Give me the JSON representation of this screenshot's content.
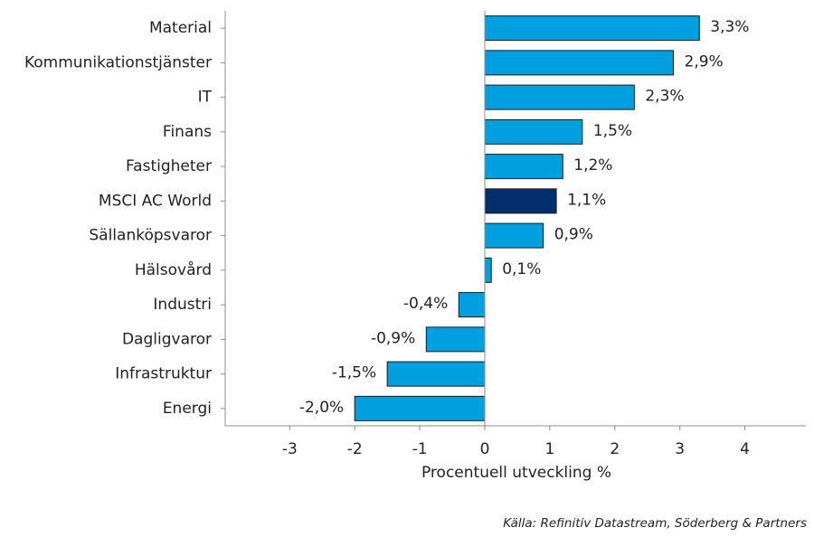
{
  "chart_data": {
    "type": "bar",
    "orientation": "horizontal",
    "categories": [
      "Material",
      "Kommunikationstjänster",
      "IT",
      "Finans",
      "Fastigheter",
      "MSCI AC World",
      "Sällanköpsvaror",
      "Hälsovård",
      "Industri",
      "Dagligvaror",
      "Infrastruktur",
      "Energi"
    ],
    "values": [
      3.3,
      2.9,
      2.3,
      1.5,
      1.2,
      1.1,
      0.9,
      0.1,
      -0.4,
      -0.9,
      -1.5,
      -2.0
    ],
    "value_labels": [
      "3,3%",
      "2,9%",
      "2,3%",
      "1,5%",
      "1,2%",
      "1,1%",
      "0,9%",
      "0,1%",
      "-0,4%",
      "-0,9%",
      "-1,5%",
      "-2,0%"
    ],
    "highlight_category": "MSCI AC World",
    "xlabel": "Procentuell utveckling %",
    "xlim": [
      -4,
      5
    ],
    "xticks": [
      -3,
      -2,
      -1,
      0,
      1,
      2,
      3,
      4
    ],
    "grid": false,
    "colors": {
      "bar": "#00a0e0",
      "highlight": "#002f6c",
      "bar_edge": "#1a1a1a",
      "axis": "#8c8c8c"
    }
  },
  "source_text": "Källa: Refinitiv Datastream, Söderberg & Partners"
}
